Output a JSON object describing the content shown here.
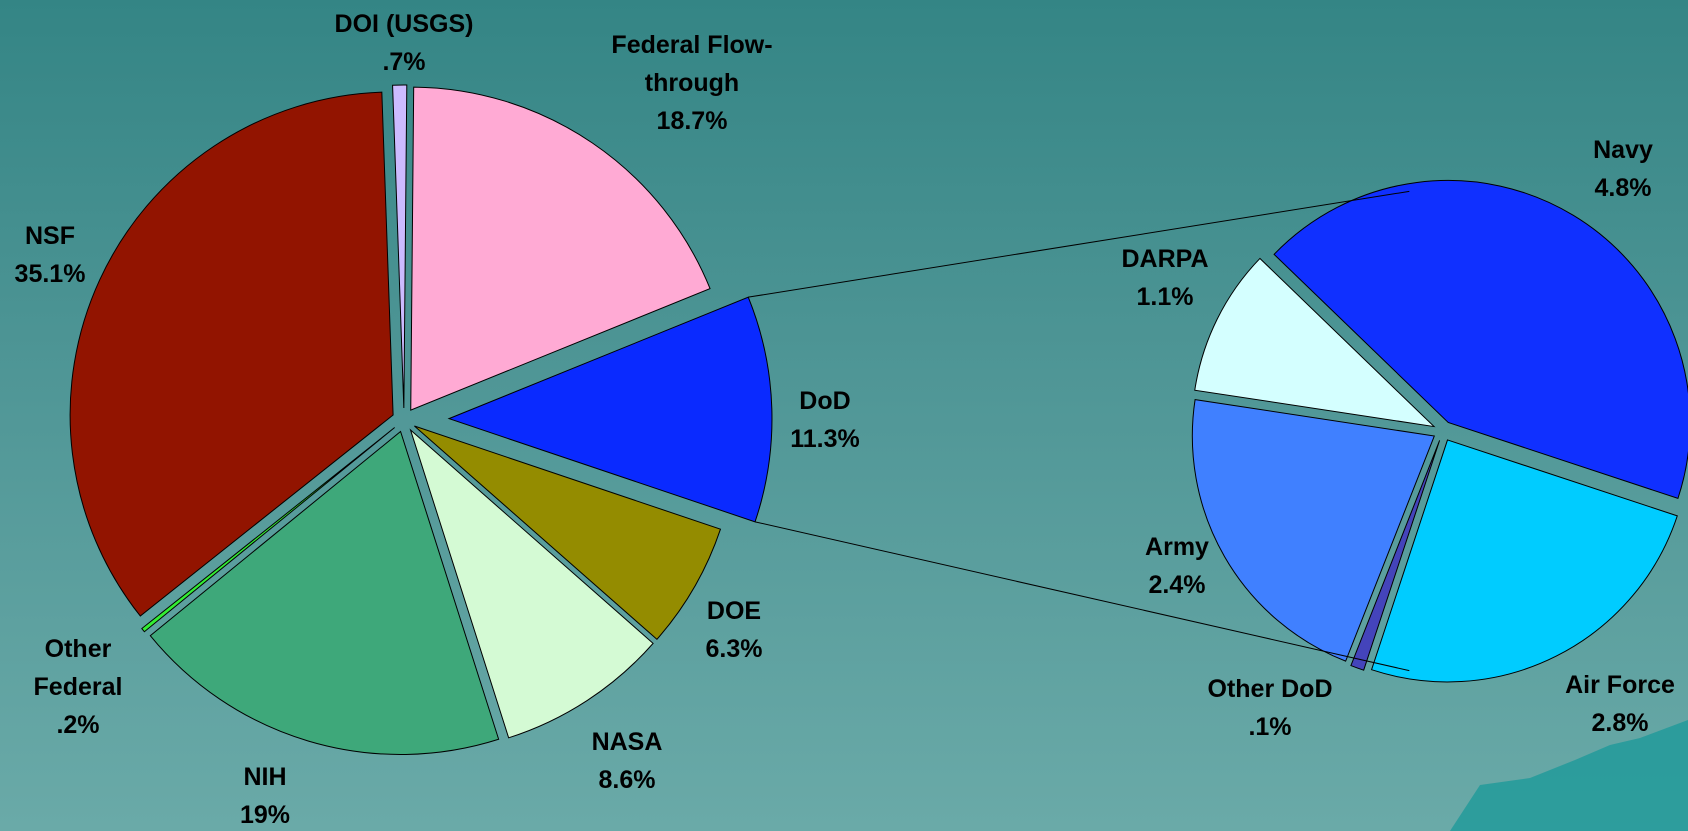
{
  "chart_data": [
    {
      "type": "pie",
      "categories": [
        "DOI (USGS)",
        "Federal Flow-through",
        "DoD",
        "DOE",
        "NASA",
        "NIH",
        "Other Federal",
        "NSF"
      ],
      "values": [
        0.7,
        18.7,
        11.3,
        6.3,
        8.6,
        19,
        0.2,
        35.1
      ],
      "value_labels": [
        ".7%",
        "18.7%",
        "11.3%",
        "6.3%",
        "8.6%",
        "19%",
        ".2%",
        "35.1%"
      ],
      "colors": [
        "#ccbbff",
        "#ffaad4",
        "#0a2aff",
        "#948c00",
        "#d4fad4",
        "#3ea87a",
        "#33ee33",
        "#921400"
      ]
    },
    {
      "type": "pie",
      "categories": [
        "Navy",
        "Air Force",
        "Other DoD",
        "Army",
        "DARPA"
      ],
      "values": [
        4.8,
        2.8,
        0.1,
        2.4,
        1.1
      ],
      "value_labels": [
        "4.8%",
        "2.8%",
        ".1%",
        "2.4%",
        "1.1%"
      ],
      "colors": [
        "#1030ff",
        "#00ccff",
        "#4444bb",
        "#4080ff",
        "#d4ffff"
      ]
    }
  ]
}
